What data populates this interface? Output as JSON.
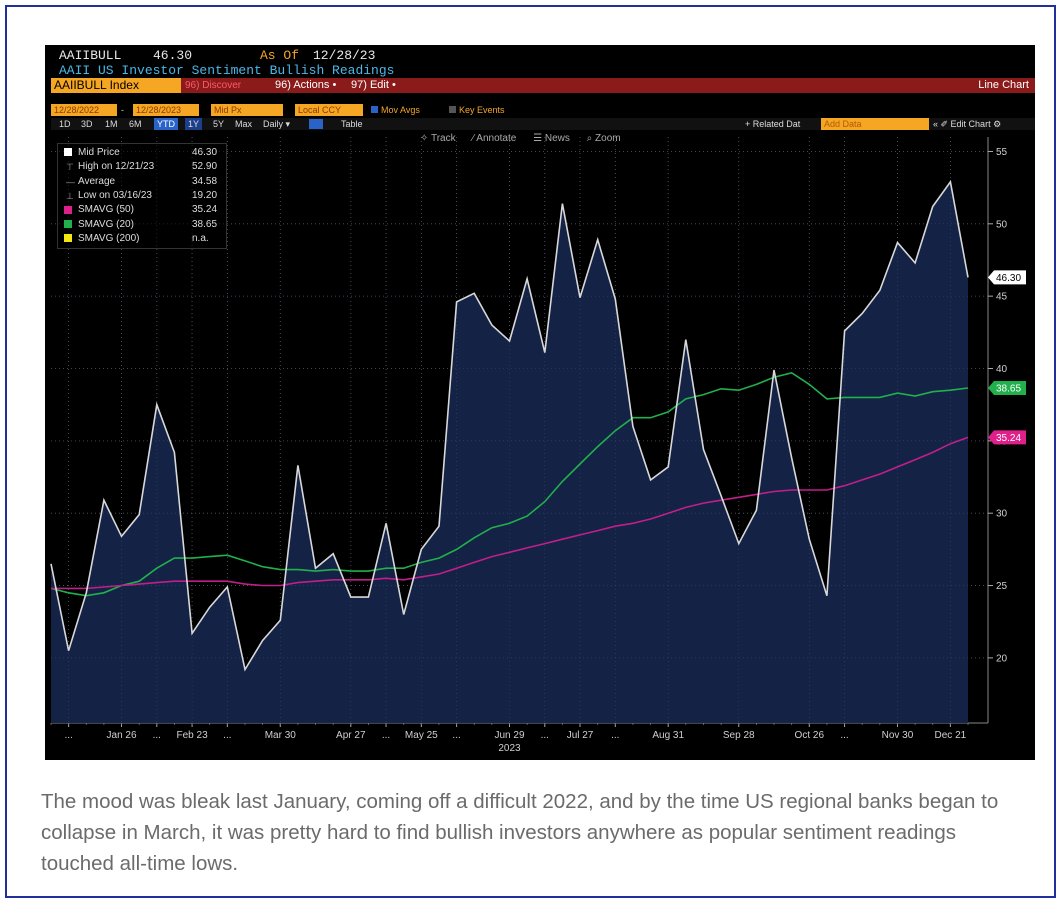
{
  "header": {
    "ticker": "AAIIBULL",
    "price": "46.30",
    "as_of_label": "As Of",
    "as_of_date": "12/28/23",
    "description": "AAII US Investor Sentiment Bullish Readings"
  },
  "menu_bar": {
    "index": "AAIIBULL Index",
    "discover": "96) Discover",
    "actions": "96) Actions •",
    "edit": "97) Edit •",
    "chart_type": "Line Chart"
  },
  "settings_bar": {
    "start_date": "12/28/2022",
    "end_date": "12/28/2023",
    "field": "Mid Px",
    "currency": "Local CCY",
    "mov_avgs": "Mov Avgs",
    "key_events": "Key Events"
  },
  "range_bar": {
    "ranges": [
      "1D",
      "3D",
      "1M",
      "6M",
      "YTD",
      "1Y",
      "5Y",
      "Max"
    ],
    "selected": "YTD",
    "period": "Daily ▾",
    "table": "Table",
    "related": "+ Related Dat",
    "add_data": "Add Data",
    "edit_chart": "« ✐ Edit Chart ⚙"
  },
  "toolbar": {
    "track": "✧ Track",
    "annotate": "∕ Annotate",
    "news": "☰ News",
    "zoom": "⌕ Zoom"
  },
  "legend": {
    "rows": [
      {
        "label": "Mid Price",
        "value": "46.30",
        "color": "#ffffff",
        "swatch": true
      },
      {
        "label": "High on 12/21/23",
        "value": "52.90",
        "color": "",
        "swatch": false,
        "mark": "⊤"
      },
      {
        "label": "Average",
        "value": "34.58",
        "color": "",
        "swatch": false,
        "mark": "—"
      },
      {
        "label": "Low on 03/16/23",
        "value": "19.20",
        "color": "",
        "swatch": false,
        "mark": "⊥"
      },
      {
        "label": "SMAVG (50)",
        "value": "35.24",
        "color": "#e0208a",
        "swatch": true
      },
      {
        "label": "SMAVG (20)",
        "value": "38.65",
        "color": "#21b04b",
        "swatch": true
      },
      {
        "label": "SMAVG (200)",
        "value": "n.a.",
        "color": "#f5e614",
        "swatch": true
      }
    ]
  },
  "caption": "The mood was bleak last January, coming off a difficult 2022, and by the time US regional banks began to collapse in March, it was pretty hard to find bullish investors anywhere as popular sentiment readings touched all-time lows.",
  "chart_data": {
    "type": "area",
    "title": "AAII US Investor Sentiment Bullish Readings",
    "xlabel": "2023",
    "ylabel": "",
    "ylim": [
      15.5,
      56
    ],
    "y_ticks": [
      20,
      25,
      30,
      35,
      40,
      45,
      50,
      55
    ],
    "x_tick_labels": [
      "...",
      "Jan 26",
      "...",
      "Feb 23",
      "...",
      "Mar 30",
      "Apr 27",
      "...",
      "May 25",
      "...",
      "Jun 29",
      "...",
      "Jul 27",
      "...",
      "Aug 31",
      "Sep 28",
      "Oct 26",
      "...",
      "Nov 30",
      "Dec 21"
    ],
    "x_tick_weeks": [
      1,
      4,
      6,
      8,
      10,
      13,
      17,
      19,
      21,
      23,
      26,
      28,
      30,
      32,
      35,
      39,
      43,
      45,
      48,
      51
    ],
    "grid": true,
    "series": [
      {
        "name": "Mid Price",
        "color": "#d8d8d8",
        "fill": "#15244a",
        "values": [
          26.5,
          20.5,
          24.5,
          30.9,
          28.4,
          29.9,
          37.5,
          34.2,
          21.7,
          23.5,
          24.9,
          19.2,
          21.2,
          22.6,
          33.3,
          26.2,
          27.2,
          24.2,
          24.2,
          29.3,
          23.0,
          27.5,
          29.1,
          44.6,
          45.2,
          43.0,
          41.9,
          46.2,
          41.1,
          51.4,
          44.9,
          48.9,
          44.8,
          36.0,
          32.3,
          33.2,
          42.0,
          34.4,
          31.2,
          27.9,
          30.2,
          39.9,
          33.8,
          28.2,
          24.3,
          42.6,
          43.8,
          45.4,
          48.7,
          47.3,
          51.2,
          52.9,
          46.3
        ],
        "last_value": "46.30"
      },
      {
        "name": "SMAVG (20)",
        "color": "#21b04b",
        "values": [
          24.8,
          24.5,
          24.3,
          24.5,
          25.0,
          25.3,
          26.2,
          26.9,
          26.9,
          27.0,
          27.1,
          26.7,
          26.3,
          26.1,
          26.1,
          26.0,
          26.1,
          26.0,
          26.0,
          26.2,
          26.2,
          26.6,
          26.9,
          27.5,
          28.3,
          29.0,
          29.3,
          29.8,
          30.8,
          32.2,
          33.4,
          34.6,
          35.7,
          36.6,
          36.6,
          37.0,
          37.9,
          38.2,
          38.6,
          38.5,
          38.9,
          39.4,
          39.7,
          38.9,
          37.9,
          38.0,
          38.0,
          38.0,
          38.3,
          38.1,
          38.4,
          38.5,
          38.65
        ],
        "last_value": "38.65"
      },
      {
        "name": "SMAVG (50)",
        "color": "#c01f8a",
        "values": [
          24.8,
          24.8,
          24.8,
          24.9,
          25.0,
          25.1,
          25.2,
          25.3,
          25.3,
          25.3,
          25.3,
          25.1,
          25.0,
          25.0,
          25.2,
          25.3,
          25.4,
          25.4,
          25.4,
          25.5,
          25.4,
          25.6,
          25.8,
          26.2,
          26.6,
          27.0,
          27.3,
          27.6,
          27.9,
          28.2,
          28.5,
          28.8,
          29.1,
          29.3,
          29.6,
          30.0,
          30.4,
          30.7,
          30.9,
          31.1,
          31.3,
          31.5,
          31.6,
          31.6,
          31.6,
          31.9,
          32.3,
          32.7,
          33.2,
          33.7,
          34.2,
          34.8,
          35.24
        ],
        "last_value": "35.24"
      }
    ]
  }
}
